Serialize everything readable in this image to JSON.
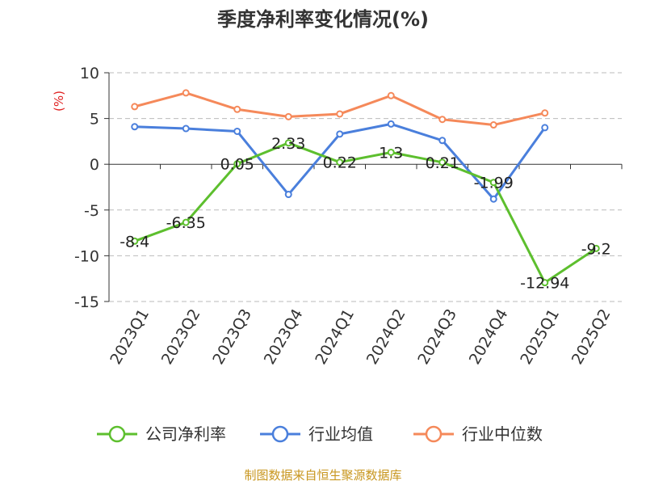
{
  "chart_data": {
    "type": "line",
    "title": "季度净利率变化情况(%)",
    "ylabel": "(%)",
    "ylim": [
      -15,
      10
    ],
    "yticks": [
      10,
      5,
      0,
      -5,
      -10,
      -15
    ],
    "categories": [
      "2023Q1",
      "2023Q2",
      "2023Q3",
      "2023Q4",
      "2024Q1",
      "2024Q2",
      "2024Q3",
      "2024Q4",
      "2025Q1",
      "2025Q2"
    ],
    "grid": true,
    "legend_position": "bottom",
    "series": [
      {
        "name": "公司净利率",
        "color": "#5dbf2e",
        "values": [
          -8.4,
          -6.35,
          0.05,
          2.33,
          0.22,
          1.3,
          0.21,
          -1.99,
          -12.94,
          -9.2
        ],
        "labels": [
          "-8.4",
          "-6.35",
          "0.05",
          "2.33",
          "0.22",
          "1.3",
          "0.21",
          "-1.99",
          "-12.94",
          "-9.2"
        ]
      },
      {
        "name": "行业均值",
        "color": "#4a7fdc",
        "values": [
          4.1,
          3.9,
          3.6,
          -3.3,
          3.3,
          4.4,
          2.6,
          -3.8,
          4.0,
          null
        ]
      },
      {
        "name": "行业中位数",
        "color": "#f5895a",
        "values": [
          6.3,
          7.8,
          6.0,
          5.2,
          5.5,
          7.5,
          4.9,
          4.3,
          5.6,
          null
        ]
      }
    ]
  },
  "footer": {
    "source": "制图数据来自恒生聚源数据库"
  }
}
